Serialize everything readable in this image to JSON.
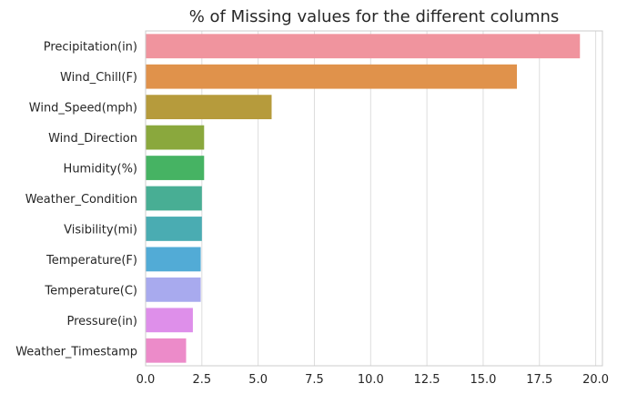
{
  "chart_data": {
    "type": "bar",
    "orientation": "horizontal",
    "title": "% of Missing values for the different columns",
    "xlabel": "",
    "ylabel": "",
    "grid": "vertical",
    "legend": "none",
    "xlim": [
      0,
      20.3
    ],
    "xticks": [
      "0.0",
      "2.5",
      "5.0",
      "7.5",
      "10.0",
      "12.5",
      "15.0",
      "17.5",
      "20.0"
    ],
    "categories": [
      "Precipitation(in)",
      "Wind_Chill(F)",
      "Wind_Speed(mph)",
      "Wind_Direction",
      "Humidity(%)",
      "Weather_Condition",
      "Visibility(mi)",
      "Temperature(F)",
      "Temperature(C)",
      "Pressure(in)",
      "Weather_Timestamp"
    ],
    "values": [
      19.3,
      16.5,
      5.6,
      2.6,
      2.6,
      2.5,
      2.5,
      2.45,
      2.45,
      2.1,
      1.8
    ],
    "colors": [
      "#f0949e",
      "#e0924b",
      "#b69b3c",
      "#8aa83d",
      "#46b363",
      "#48ae94",
      "#4aacb2",
      "#52abd6",
      "#a8aaee",
      "#de8fea",
      "#ec8bc9"
    ]
  }
}
